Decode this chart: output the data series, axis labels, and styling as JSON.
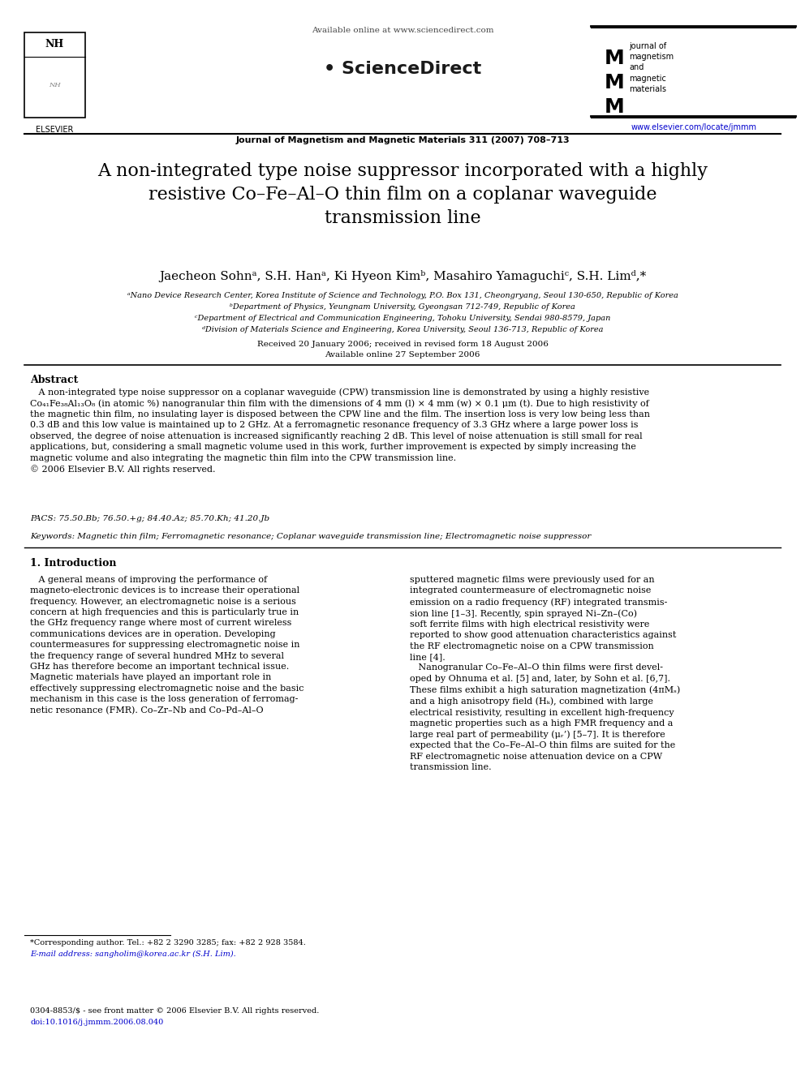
{
  "bg_color": "#ffffff",
  "page_width": 9.92,
  "page_height": 13.23,
  "dpi": 100,
  "header": {
    "available_online": "Available online at www.sciencedirect.com",
    "sciencedirect": "• ScienceDirect",
    "journal_line": "Journal of Magnetism and Magnetic Materials 311 (2007) 708–713",
    "journal_name_right": "journal of\nmagnetism\nand\nmagnetic\nmaterials",
    "url_right": "www.elsevier.com/locate/jmmm"
  },
  "title": "A non-integrated type noise suppressor incorporated with a highly\nresistive Co–Fe–Al–O thin film on a coplanar waveguide\ntransmission line",
  "authors": "Jaecheon Sohnᵃ, S.H. Hanᵃ, Ki Hyeon Kimᵇ, Masahiro Yamaguchiᶜ, S.H. Limᵈ,*",
  "affil_a": "ᵃNano Device Research Center, Korea Institute of Science and Technology, P.O. Box 131, Cheongryang, Seoul 130-650, Republic of Korea",
  "affil_b": "ᵇDepartment of Physics, Yeungnam University, Gyeongsan 712-749, Republic of Korea",
  "affil_c": "ᶜDepartment of Electrical and Communication Engineering, Tohoku University, Sendai 980-8579, Japan",
  "affil_d": "ᵈDivision of Materials Science and Engineering, Korea University, Seoul 136-713, Republic of Korea",
  "received": "Received 20 January 2006; received in revised form 18 August 2006",
  "available": "Available online 27 September 2006",
  "abstract_title": "Abstract",
  "abstract_text": "   A non-integrated type noise suppressor on a coplanar waveguide (CPW) transmission line is demonstrated by using a highly resistive\nCo₄₁Fe₃₈Al₁₃O₈ (in atomic %) nanogranular thin film with the dimensions of 4 mm (l) × 4 mm (w) × 0.1 μm (t). Due to high resistivity of\nthe magnetic thin film, no insulating layer is disposed between the CPW line and the film. The insertion loss is very low being less than\n0.3 dB and this low value is maintained up to 2 GHz. At a ferromagnetic resonance frequency of 3.3 GHz where a large power loss is\nobserved, the degree of noise attenuation is increased significantly reaching 2 dB. This level of noise attenuation is still small for real\napplications, but, considering a small magnetic volume used in this work, further improvement is expected by simply increasing the\nmagnetic volume and also integrating the magnetic thin film into the CPW transmission line.\n© 2006 Elsevier B.V. All rights reserved.",
  "pacs": "PACS: 75.50.Bb; 76.50.+g; 84.40.Az; 85.70.Kh; 41.20.Jb",
  "keywords": "Keywords: Magnetic thin film; Ferromagnetic resonance; Coplanar waveguide transmission line; Electromagnetic noise suppressor",
  "intro_title": "1. Introduction",
  "intro_left": "   A general means of improving the performance of\nmagneto-electronic devices is to increase their operational\nfrequency. However, an electromagnetic noise is a serious\nconcern at high frequencies and this is particularly true in\nthe GHz frequency range where most of current wireless\ncommunications devices are in operation. Developing\ncountermeasures for suppressing electromagnetic noise in\nthe frequency range of several hundred MHz to several\nGHz has therefore become an important technical issue.\nMagnetic materials have played an important role in\neffectively suppressing electromagnetic noise and the basic\nmechanism in this case is the loss generation of ferromag-\nnetic resonance (FMR). Co–Zr–Nb and Co–Pd–Al–O",
  "intro_right": "sputtered magnetic films were previously used for an\nintegrated countermeasure of electromagnetic noise\nemission on a radio frequency (RF) integrated transmis-\nsion line [1–3]. Recently, spin sprayed Ni–Zn–(Co)\nsoft ferrite films with high electrical resistivity were\nreported to show good attenuation characteristics against\nthe RF electromagnetic noise on a CPW transmission\nline [4].\n   Nanogranular Co–Fe–Al–O thin films were first devel-\noped by Ohnuma et al. [5] and, later, by Sohn et al. [6,7].\nThese films exhibit a high saturation magnetization (4πMₛ)\nand a high anisotropy field (Hₖ), combined with large\nelectrical resistivity, resulting in excellent high-frequency\nmagnetic properties such as a high FMR frequency and a\nlarge real part of permeability (μᵣ’) [5–7]. It is therefore\nexpected that the Co–Fe–Al–O thin films are suited for the\nRF electromagnetic noise attenuation device on a CPW\ntransmission line.",
  "footnote_star": "*Corresponding author. Tel.: +82 2 3290 3285; fax: +82 2 928 3584.",
  "footnote_email": "E-mail address: sangholim@korea.ac.kr (S.H. Lim).",
  "footnote_bottom1": "0304-8853/$ - see front matter © 2006 Elsevier B.V. All rights reserved.",
  "footnote_bottom2": "doi:10.1016/j.jmmm.2006.08.040"
}
